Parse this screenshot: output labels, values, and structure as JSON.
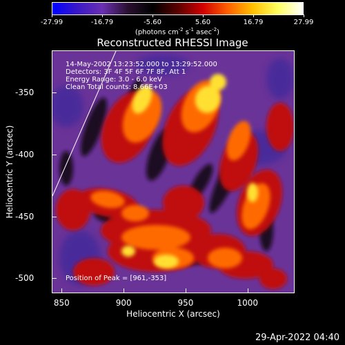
{
  "colorbar": {
    "tick_labels": [
      "-27.99",
      "-16.79",
      "-5.60",
      "5.60",
      "16.79",
      "27.99"
    ],
    "units_prefix": "(photons cm",
    "units_exp1": "-2",
    "units_mid": " s",
    "units_exp2": "-1",
    "units_mid2": " asec",
    "units_exp3": "-2",
    "units_suffix": ")"
  },
  "title": "Reconstructed RHESSI Image",
  "annotations": {
    "time_range": "14-May-2002 13:23:52.000 to 13:29:52.000",
    "detectors": "Detectors: 3F 4F 5F 6F 7F 8F, Att 1",
    "energy": "Energy Range: 3.0 - 6.0 keV",
    "method": "Clean     Total counts: 8.66E+03",
    "peak": "Position of Peak = [961,-353]"
  },
  "x_axis": {
    "label": "Heliocentric X (arcsec)",
    "range": [
      842,
      1038
    ],
    "ticks": [
      "850",
      "900",
      "950",
      "1000"
    ]
  },
  "y_axis": {
    "label": "Heliocentric Y (arcsec)",
    "range": [
      -512,
      -316
    ],
    "ticks": [
      "-350",
      "-400",
      "-450",
      "-500"
    ]
  },
  "timestamp": "29-Apr-2022 04:40",
  "colors": {
    "background": "#000000",
    "colormap": [
      "#0000ff",
      "#5a2a9a",
      "#7a3fb0",
      "#2a1040",
      "#000000",
      "#7a0000",
      "#ff0000",
      "#ff9a00",
      "#ffff00",
      "#ffffff"
    ]
  }
}
